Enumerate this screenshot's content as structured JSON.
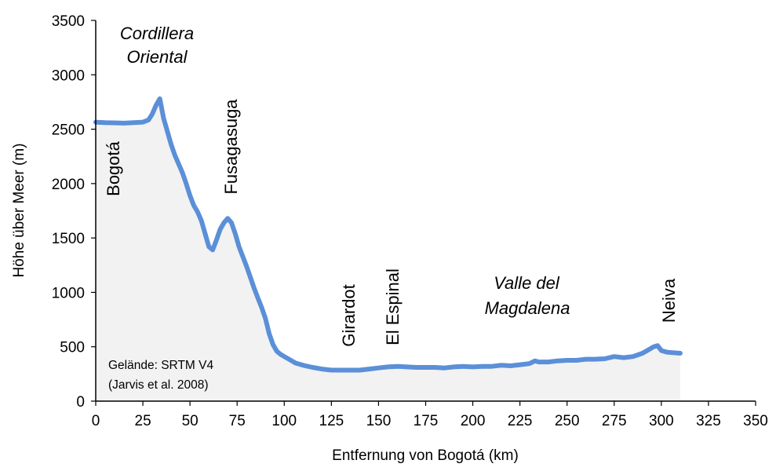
{
  "chart_data": {
    "type": "area",
    "title": "",
    "xlabel": "Entfernung von Bogotá (km)",
    "ylabel": "Höhe über Meer (m)",
    "xlim": [
      0,
      350
    ],
    "ylim": [
      0,
      3500
    ],
    "xticks": [
      0,
      25,
      50,
      75,
      100,
      125,
      150,
      175,
      200,
      225,
      250,
      275,
      300,
      325,
      350
    ],
    "yticks": [
      0,
      500,
      1000,
      1500,
      2000,
      2500,
      3000,
      3500
    ],
    "grid": false,
    "line_color": "#5b8fd8",
    "fill_color": "#f2f2f2",
    "series": [
      {
        "x": [
          0,
          5,
          10,
          15,
          20,
          25,
          28,
          30,
          32,
          34,
          36,
          38,
          40,
          42,
          44,
          46,
          48,
          50,
          52,
          54,
          56,
          58,
          60,
          62,
          64,
          66,
          68,
          70,
          72,
          74,
          76,
          78,
          80,
          82,
          84,
          86,
          88,
          90,
          92,
          94,
          96,
          98,
          100,
          103,
          106,
          110,
          115,
          120,
          125,
          130,
          135,
          140,
          145,
          150,
          155,
          160,
          165,
          170,
          175,
          180,
          185,
          190,
          195,
          200,
          205,
          210,
          215,
          220,
          225,
          230,
          233,
          235,
          240,
          245,
          250,
          255,
          260,
          265,
          270,
          275,
          280,
          285,
          290,
          293,
          296,
          298,
          300,
          303,
          306,
          310
        ],
        "y": [
          2565,
          2560,
          2558,
          2555,
          2560,
          2565,
          2585,
          2640,
          2720,
          2780,
          2600,
          2480,
          2360,
          2260,
          2180,
          2100,
          2000,
          1890,
          1800,
          1740,
          1660,
          1540,
          1420,
          1390,
          1480,
          1580,
          1640,
          1680,
          1640,
          1540,
          1420,
          1330,
          1240,
          1140,
          1040,
          950,
          860,
          760,
          620,
          520,
          460,
          430,
          410,
          380,
          350,
          330,
          310,
          295,
          285,
          285,
          285,
          285,
          295,
          305,
          315,
          320,
          315,
          310,
          310,
          310,
          305,
          315,
          320,
          315,
          320,
          320,
          330,
          325,
          335,
          345,
          370,
          360,
          360,
          370,
          375,
          375,
          385,
          385,
          390,
          410,
          400,
          410,
          440,
          470,
          500,
          510,
          465,
          450,
          445,
          440
        ]
      }
    ]
  },
  "annotations": {
    "places": [
      "Bogotá",
      "Fusagasuga",
      "Girardot",
      "El Espinal",
      "Neiva"
    ],
    "region_1": [
      "Cordillera",
      "Oriental"
    ],
    "region_2": [
      "Valle del",
      "Magdalena"
    ],
    "source_note": [
      "Gelände: SRTM V4",
      "(Jarvis et al. 2008)"
    ]
  }
}
